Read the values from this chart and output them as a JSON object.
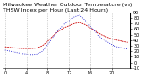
{
  "title": "Milwaukee Weather Outdoor Temperature (vs) THSW Index per Hour (Last 24 Hours)",
  "temp_color": "#cc0000",
  "thsw_color": "#0000cc",
  "ylabel_right": "",
  "ylim": [
    -10,
    90
  ],
  "xlim": [
    0,
    23
  ],
  "grid_color": "#aaaaaa",
  "bg_color": "#ffffff",
  "temp_values": [
    28,
    27,
    26,
    25,
    25,
    25,
    26,
    30,
    38,
    48,
    56,
    62,
    66,
    70,
    72,
    68,
    62,
    56,
    50,
    46,
    42,
    40,
    38,
    36
  ],
  "thsw_values": [
    22,
    20,
    18,
    16,
    15,
    14,
    15,
    20,
    32,
    46,
    58,
    68,
    75,
    82,
    85,
    76,
    65,
    54,
    44,
    38,
    32,
    28,
    26,
    24
  ],
  "yticks": [
    -10,
    0,
    10,
    20,
    30,
    40,
    50,
    60,
    70,
    80,
    90
  ],
  "title_fontsize": 4.5,
  "tick_fontsize": 3.5
}
